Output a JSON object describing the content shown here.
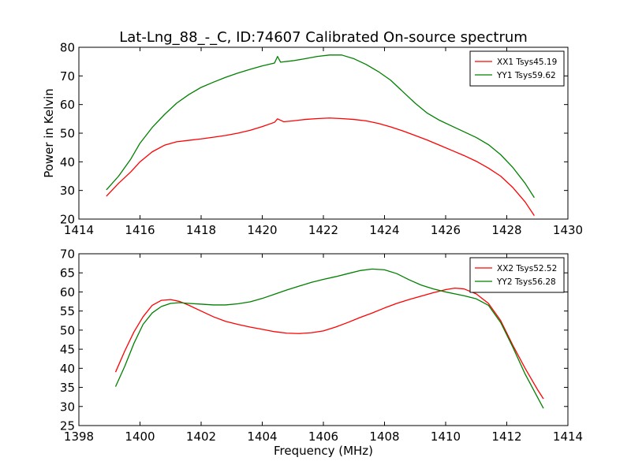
{
  "figure_title": "Lat-Lng_88_-_C, ID:74607 Calibrated On-source spectrum",
  "chart_data": [
    {
      "type": "line",
      "title": "Lat-Lng_88_-_C, ID:74607 Calibrated On-source spectrum",
      "xlabel": "",
      "ylabel": "Power in Kelvin",
      "xlim": [
        1414,
        1430
      ],
      "ylim": [
        20,
        80
      ],
      "xticks": [
        1414,
        1416,
        1418,
        1420,
        1422,
        1424,
        1426,
        1428,
        1430
      ],
      "yticks": [
        20,
        30,
        40,
        50,
        60,
        70,
        80
      ],
      "grid": false,
      "legend_position": "top-right",
      "series": [
        {
          "name": "XX1 Tsys45.19",
          "color": "#ff0000",
          "x": [
            1414.9,
            1415.3,
            1415.7,
            1416.0,
            1416.4,
            1416.8,
            1417.2,
            1417.6,
            1418.0,
            1418.4,
            1418.8,
            1419.2,
            1419.6,
            1420.0,
            1420.4,
            1420.5,
            1420.7,
            1421.0,
            1421.4,
            1421.8,
            1422.2,
            1422.6,
            1423.0,
            1423.4,
            1423.8,
            1424.2,
            1424.6,
            1425.0,
            1425.4,
            1425.8,
            1426.2,
            1426.6,
            1427.0,
            1427.4,
            1427.8,
            1428.2,
            1428.6,
            1428.9
          ],
          "values": [
            28.0,
            32.5,
            36.5,
            40.0,
            43.5,
            45.8,
            47.0,
            47.5,
            48.0,
            48.6,
            49.2,
            50.0,
            51.0,
            52.3,
            53.8,
            55.0,
            54.0,
            54.3,
            54.8,
            55.1,
            55.3,
            55.1,
            54.8,
            54.3,
            53.4,
            52.2,
            50.8,
            49.2,
            47.6,
            45.8,
            44.0,
            42.2,
            40.2,
            37.8,
            35.0,
            31.0,
            26.0,
            21.2
          ]
        },
        {
          "name": "YY1 Tsys59.62",
          "color": "#008000",
          "x": [
            1414.9,
            1415.3,
            1415.7,
            1416.0,
            1416.4,
            1416.8,
            1417.2,
            1417.6,
            1418.0,
            1418.4,
            1418.8,
            1419.2,
            1419.6,
            1420.0,
            1420.4,
            1420.5,
            1420.6,
            1421.0,
            1421.4,
            1421.8,
            1422.2,
            1422.6,
            1423.0,
            1423.4,
            1423.8,
            1424.2,
            1424.6,
            1425.0,
            1425.4,
            1425.8,
            1426.2,
            1426.6,
            1427.0,
            1427.4,
            1427.8,
            1428.2,
            1428.6,
            1428.9
          ],
          "values": [
            30.2,
            35.0,
            41.0,
            46.5,
            52.0,
            56.5,
            60.5,
            63.5,
            66.0,
            67.8,
            69.5,
            71.0,
            72.3,
            73.5,
            74.5,
            76.8,
            74.8,
            75.3,
            76.0,
            76.8,
            77.3,
            77.3,
            76.0,
            74.0,
            71.5,
            68.5,
            64.5,
            60.5,
            57.0,
            54.5,
            52.5,
            50.5,
            48.5,
            46.0,
            42.5,
            38.0,
            32.5,
            27.5
          ]
        }
      ]
    },
    {
      "type": "line",
      "title": "",
      "xlabel": "Frequency (MHz)",
      "ylabel": "",
      "xlim": [
        1398,
        1414
      ],
      "ylim": [
        25,
        70
      ],
      "xticks": [
        1398,
        1400,
        1402,
        1404,
        1406,
        1408,
        1410,
        1412,
        1414
      ],
      "yticks": [
        25,
        30,
        35,
        40,
        45,
        50,
        55,
        60,
        65,
        70
      ],
      "grid": false,
      "legend_position": "top-right",
      "series": [
        {
          "name": "XX2 Tsys52.52",
          "color": "#ff0000",
          "x": [
            1399.2,
            1399.5,
            1399.8,
            1400.1,
            1400.4,
            1400.7,
            1401.0,
            1401.3,
            1401.6,
            1402.0,
            1402.4,
            1402.8,
            1403.2,
            1403.6,
            1404.0,
            1404.4,
            1404.8,
            1405.2,
            1405.6,
            1406.0,
            1406.4,
            1406.8,
            1407.2,
            1407.6,
            1408.0,
            1408.4,
            1408.8,
            1409.2,
            1409.6,
            1410.0,
            1410.3,
            1410.6,
            1411.0,
            1411.4,
            1411.8,
            1412.2,
            1412.6,
            1413.0,
            1413.2
          ],
          "values": [
            39.0,
            44.5,
            49.5,
            53.5,
            56.5,
            57.8,
            58.0,
            57.5,
            56.5,
            55.0,
            53.5,
            52.3,
            51.5,
            50.8,
            50.2,
            49.6,
            49.2,
            49.1,
            49.3,
            49.8,
            50.8,
            52.0,
            53.3,
            54.5,
            55.8,
            57.0,
            58.0,
            58.9,
            59.8,
            60.6,
            61.0,
            60.8,
            59.5,
            57.0,
            52.5,
            46.0,
            40.0,
            34.5,
            32.0
          ]
        },
        {
          "name": "YY2 Tsys56.28",
          "color": "#008000",
          "x": [
            1399.2,
            1399.5,
            1399.8,
            1400.1,
            1400.4,
            1400.7,
            1401.0,
            1401.3,
            1401.6,
            1402.0,
            1402.4,
            1402.8,
            1403.2,
            1403.6,
            1404.0,
            1404.4,
            1404.8,
            1405.2,
            1405.6,
            1406.0,
            1406.4,
            1406.8,
            1407.2,
            1407.6,
            1408.0,
            1408.4,
            1408.8,
            1409.2,
            1409.6,
            1410.0,
            1410.3,
            1410.6,
            1411.0,
            1411.4,
            1411.8,
            1412.2,
            1412.6,
            1413.0,
            1413.2
          ],
          "values": [
            35.2,
            40.5,
            46.5,
            51.5,
            54.5,
            56.2,
            57.0,
            57.2,
            57.0,
            56.8,
            56.6,
            56.6,
            56.9,
            57.4,
            58.3,
            59.4,
            60.5,
            61.5,
            62.5,
            63.3,
            64.0,
            64.8,
            65.6,
            66.0,
            65.8,
            64.8,
            63.2,
            61.8,
            60.8,
            60.0,
            59.5,
            59.0,
            58.2,
            56.5,
            52.0,
            45.5,
            38.5,
            32.5,
            29.5
          ]
        }
      ]
    }
  ]
}
